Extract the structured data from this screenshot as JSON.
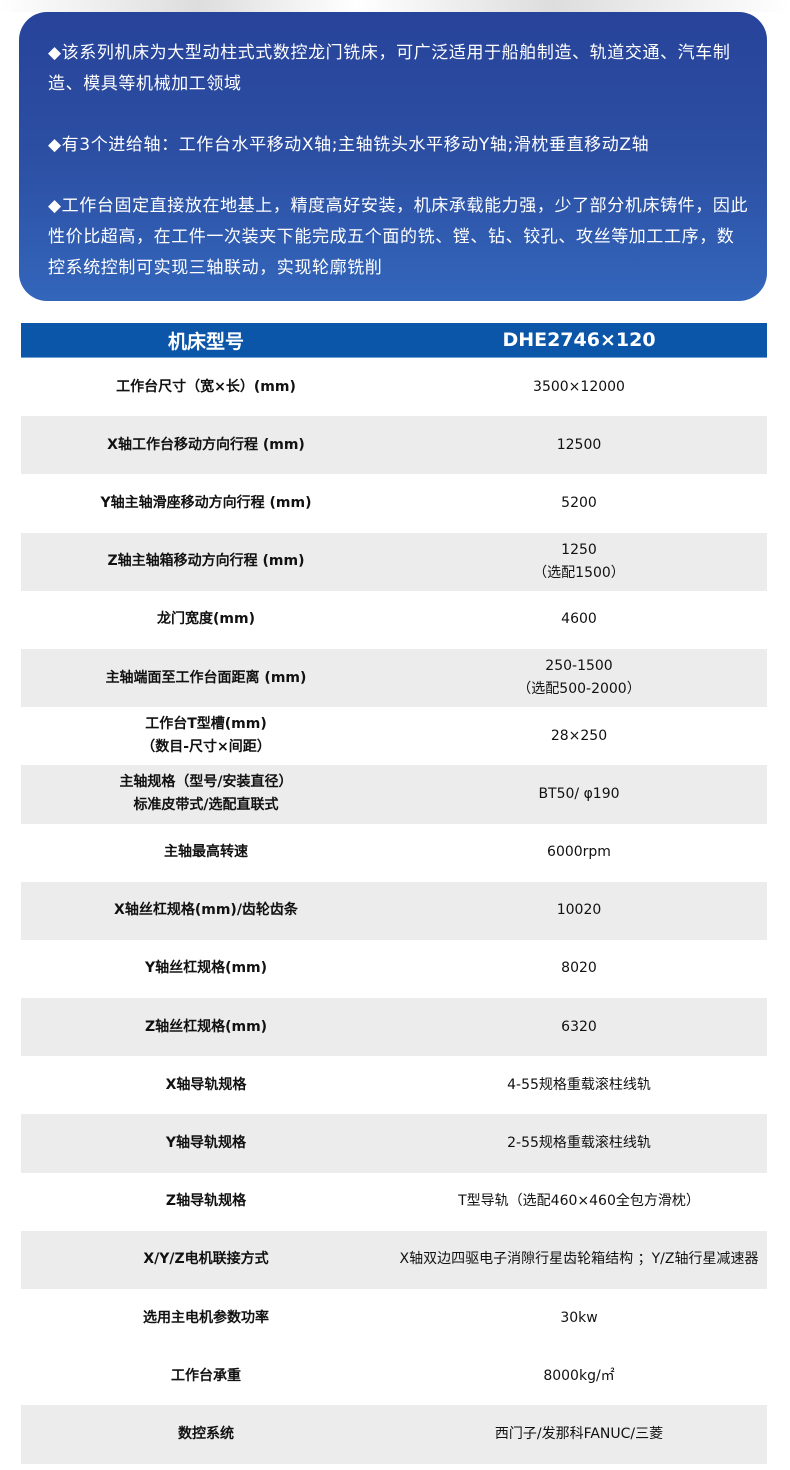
{
  "intro": [
    "◆该系列机床为大型动柱式式数控龙门铣床，可广泛适用于船舶制造、轨道交通、汽车制造、模具等机械加工领域",
    "◆有3个进给轴：工作台水平移动X轴;主轴铣头水平移动Y轴;滑枕垂直移动Z轴",
    "◆工作台固定直接放在地基上，精度高好安装，机床承载能力强，少了部分机床铸件，因此性价比超高，在工件一次装夹下能完成五个面的铣、镗、钻、铰孔、攻丝等加工工序，数控系统控制可实现三轴联动，实现轮廓铣削"
  ],
  "table": {
    "header": [
      "机床型号",
      "DHE2746×120"
    ],
    "rows": [
      [
        "工作台尺寸（宽×长）(mm)",
        "3500×12000"
      ],
      [
        "X轴工作台移动方向行程 (mm)",
        "12500"
      ],
      [
        "Y轴主轴滑座移动方向行程 (mm)",
        "5200"
      ],
      [
        "Z轴主轴箱移动方向行程 (mm)",
        "1250\n（选配1500）"
      ],
      [
        "龙门宽度(mm)",
        "4600"
      ],
      [
        "主轴端面至工作台面距离 (mm)",
        "250-1500\n（选配500-2000）"
      ],
      [
        "工作台T型槽(mm)\n（数目-尺寸×间距）",
        "28×250"
      ],
      [
        "主轴规格（型号/安装直径）\n标准皮带式/选配直联式",
        "BT50/ φ190"
      ],
      [
        "主轴最高转速",
        "6000rpm"
      ],
      [
        "X轴丝杠规格(mm)/齿轮齿条",
        "10020"
      ],
      [
        "Y轴丝杠规格(mm)",
        "8020"
      ],
      [
        "Z轴丝杠规格(mm)",
        "6320"
      ],
      [
        "X轴导轨规格",
        "4-55规格重载滚柱线轨"
      ],
      [
        "Y轴导轨规格",
        "2-55规格重载滚柱线轨"
      ],
      [
        "Z轴导轨规格",
        "T型导轨（选配460×460全包方滑枕）"
      ],
      [
        "X/Y/Z电机联接方式",
        "X轴双边四驱电子消隙行星齿轮箱结构 ；Y/Z轴行星减速器"
      ],
      [
        "选用主电机参数功率",
        "30kw"
      ],
      [
        "工作台承重",
        "8000kg/㎡"
      ],
      [
        "数控系统",
        "西门子/发那科FANUC/三菱"
      ]
    ],
    "gray_rows": [
      1,
      3,
      5,
      7,
      9,
      11,
      13,
      15,
      18
    ]
  },
  "colors": {
    "card": "#2c4fa3",
    "header": "#0b56a8",
    "stripe": "#ececec"
  }
}
